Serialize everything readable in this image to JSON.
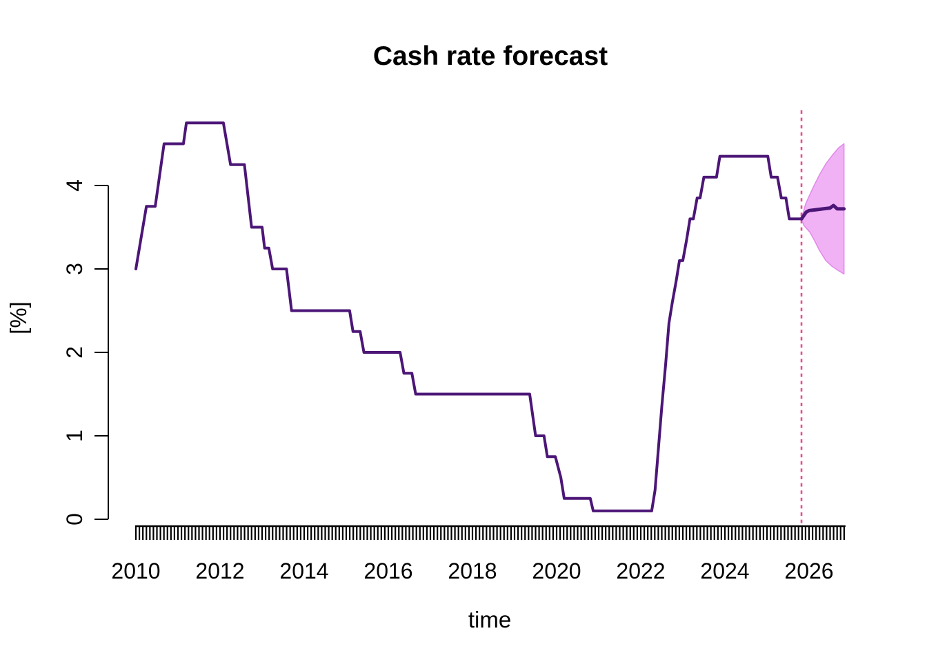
{
  "page": {
    "background": "#ffffff"
  },
  "chart_data": {
    "type": "line",
    "title": "Cash rate forecast",
    "xlabel": "time",
    "ylabel": "[%]",
    "x_ticks": [
      "2010",
      "2012",
      "2014",
      "2016",
      "2018",
      "2020",
      "2022",
      "2024",
      "2026"
    ],
    "x_tick_years": [
      2010,
      2012,
      2014,
      2016,
      2018,
      2020,
      2022,
      2024,
      2026
    ],
    "y_ticks": [
      "0",
      "1",
      "2",
      "3",
      "4"
    ],
    "y_tick_values": [
      0,
      1,
      2,
      3,
      4
    ],
    "x_domain": [
      2010.0,
      2026.85
    ],
    "y_domain": [
      0,
      4.75
    ],
    "grid": false,
    "legend_position": "none",
    "colors": {
      "line": "#4C1677",
      "median": "#4C1677",
      "interval_fill": "#F0B2F5",
      "interval_edge": "#E18CE8",
      "forecast_start_line": "#E84D8D",
      "axis": "#000000"
    },
    "history": {
      "name": "cash rate (history)",
      "points": [
        [
          2010.0,
          3.0
        ],
        [
          2010.25,
          3.75
        ],
        [
          2010.46,
          3.75
        ],
        [
          2010.67,
          4.5
        ],
        [
          2011.13,
          4.5
        ],
        [
          2011.2,
          4.75
        ],
        [
          2012.08,
          4.75
        ],
        [
          2012.25,
          4.25
        ],
        [
          2012.58,
          4.25
        ],
        [
          2012.75,
          3.5
        ],
        [
          2013.0,
          3.5
        ],
        [
          2013.06,
          3.25
        ],
        [
          2013.16,
          3.25
        ],
        [
          2013.25,
          3.0
        ],
        [
          2013.58,
          3.0
        ],
        [
          2013.7,
          2.5
        ],
        [
          2015.08,
          2.5
        ],
        [
          2015.16,
          2.25
        ],
        [
          2015.33,
          2.25
        ],
        [
          2015.42,
          2.0
        ],
        [
          2016.28,
          2.0
        ],
        [
          2016.37,
          1.75
        ],
        [
          2016.56,
          1.75
        ],
        [
          2016.65,
          1.5
        ],
        [
          2019.36,
          1.5
        ],
        [
          2019.5,
          1.0
        ],
        [
          2019.7,
          1.0
        ],
        [
          2019.78,
          0.75
        ],
        [
          2019.97,
          0.75
        ],
        [
          2020.1,
          0.5
        ],
        [
          2020.18,
          0.25
        ],
        [
          2020.8,
          0.25
        ],
        [
          2020.87,
          0.1
        ],
        [
          2022.26,
          0.1
        ],
        [
          2022.34,
          0.35
        ],
        [
          2022.42,
          0.85
        ],
        [
          2022.5,
          1.35
        ],
        [
          2022.59,
          1.85
        ],
        [
          2022.67,
          2.35
        ],
        [
          2022.75,
          2.6
        ],
        [
          2022.84,
          2.85
        ],
        [
          2022.92,
          3.1
        ],
        [
          2023.0,
          3.1
        ],
        [
          2023.09,
          3.35
        ],
        [
          2023.17,
          3.6
        ],
        [
          2023.25,
          3.6
        ],
        [
          2023.34,
          3.85
        ],
        [
          2023.41,
          3.85
        ],
        [
          2023.5,
          4.1
        ],
        [
          2023.8,
          4.1
        ],
        [
          2023.88,
          4.35
        ],
        [
          2025.02,
          4.35
        ],
        [
          2025.1,
          4.1
        ],
        [
          2025.25,
          4.1
        ],
        [
          2025.34,
          3.85
        ],
        [
          2025.45,
          3.85
        ],
        [
          2025.53,
          3.6
        ],
        [
          2025.82,
          3.6
        ]
      ]
    },
    "forecast": {
      "name": "forecast median with interval",
      "start": 2025.82,
      "end": 2026.83,
      "median": [
        [
          2025.82,
          3.6
        ],
        [
          2025.93,
          3.68
        ],
        [
          2026.0,
          3.7
        ],
        [
          2026.17,
          3.71
        ],
        [
          2026.33,
          3.72
        ],
        [
          2026.5,
          3.73
        ],
        [
          2026.58,
          3.76
        ],
        [
          2026.67,
          3.72
        ],
        [
          2026.83,
          3.72
        ]
      ],
      "upper": [
        [
          2025.82,
          3.6
        ],
        [
          2025.92,
          3.78
        ],
        [
          2026.0,
          3.87
        ],
        [
          2026.12,
          4.0
        ],
        [
          2026.25,
          4.13
        ],
        [
          2026.4,
          4.26
        ],
        [
          2026.55,
          4.36
        ],
        [
          2026.7,
          4.45
        ],
        [
          2026.83,
          4.5
        ]
      ],
      "lower": [
        [
          2025.82,
          3.6
        ],
        [
          2025.88,
          3.52
        ],
        [
          2025.95,
          3.48
        ],
        [
          2026.02,
          3.44
        ],
        [
          2026.12,
          3.35
        ],
        [
          2026.25,
          3.22
        ],
        [
          2026.4,
          3.1
        ],
        [
          2026.55,
          3.03
        ],
        [
          2026.7,
          2.98
        ],
        [
          2026.83,
          2.94
        ]
      ]
    },
    "rug": {
      "start": 2010.0,
      "end": 2026.85,
      "interval": "monthly"
    }
  }
}
